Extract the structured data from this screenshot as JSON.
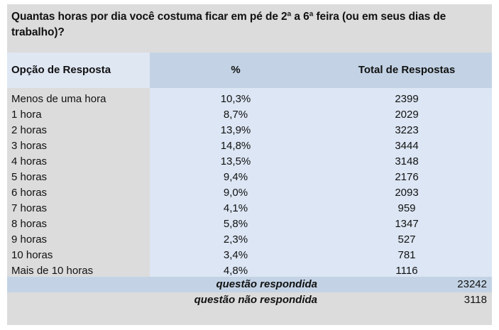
{
  "question": "Quantas horas por dia você costuma ficar em pé de 2ª a 6ª feira (ou em seus dias de trabalho)?",
  "columns": [
    "Opção de Resposta",
    "%",
    "Total de Respostas"
  ],
  "rows": [
    {
      "option": "Menos de uma hora",
      "percent": "10,3%",
      "total": "2399"
    },
    {
      "option": "1 hora",
      "percent": "8,7%",
      "total": "2029"
    },
    {
      "option": "2 horas",
      "percent": "13,9%",
      "total": "3223"
    },
    {
      "option": "3 horas",
      "percent": "14,8%",
      "total": "3444"
    },
    {
      "option": "4 horas",
      "percent": "13,5%",
      "total": "3148"
    },
    {
      "option": "5 horas",
      "percent": "9,4%",
      "total": "2176"
    },
    {
      "option": "6 horas",
      "percent": "9,0%",
      "total": "2093"
    },
    {
      "option": "7 horas",
      "percent": "4,1%",
      "total": "959"
    },
    {
      "option": "8 horas",
      "percent": "5,8%",
      "total": "1347"
    },
    {
      "option": "9 horas",
      "percent": "2,3%",
      "total": "527"
    },
    {
      "option": "10 horas",
      "percent": "3,4%",
      "total": "781"
    },
    {
      "option": "Mais de 10 horas",
      "percent": "4,8%",
      "total": "1116"
    }
  ],
  "footer": {
    "answered_label": "questão respondida",
    "answered_value": "23242",
    "unanswered_label": "questão não respondida",
    "unanswered_value": "3118"
  }
}
